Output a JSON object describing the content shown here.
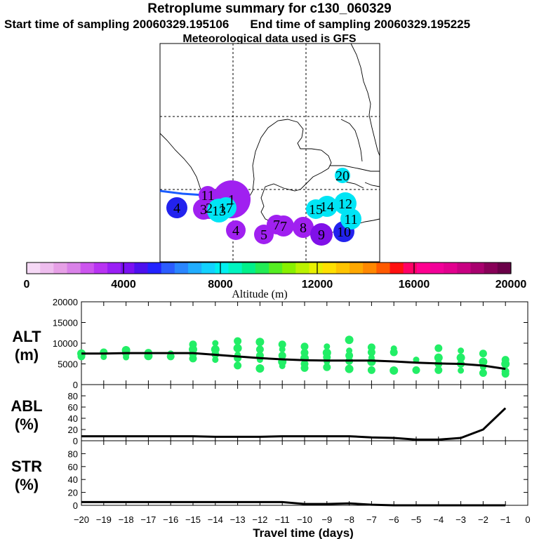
{
  "header": {
    "title": "Retroplume summary for c130_060329",
    "start": "Start time of sampling 20060329.195106",
    "end": "End time of sampling 20060329.195225",
    "met": "Meteorological data used is GFS"
  },
  "colorbar": {
    "tick_labels": [
      "0",
      "4000",
      "8000",
      "12000",
      "16000",
      "20000"
    ],
    "tick_values": [
      0,
      4000,
      8000,
      12000,
      16000,
      20000
    ],
    "label": "Altitude (m)",
    "colors": [
      "#f6d9f6",
      "#eebdee",
      "#e6a0e6",
      "#d982e8",
      "#cc55ee",
      "#b833f2",
      "#9a1ff5",
      "#7a10f2",
      "#4c10ee",
      "#2222ff",
      "#2b5cff",
      "#2a86ff",
      "#21adff",
      "#13d2ff",
      "#00f0f0",
      "#00f5c0",
      "#00f08a",
      "#22ec55",
      "#55ee22",
      "#88f000",
      "#bbf200",
      "#e8f000",
      "#ffe000",
      "#ffc400",
      "#ffa800",
      "#ff8800",
      "#ff5a00",
      "#ff1010",
      "#ff0066",
      "#ff0090",
      "#f20099",
      "#e2008e",
      "#c80082",
      "#a8006e",
      "#880058",
      "#6a0048"
    ]
  },
  "map": {
    "points": [
      {
        "label": "1",
        "color": "#a020f0"
      },
      {
        "label": "2",
        "color": "#a020f0"
      },
      {
        "label": "3",
        "color": "#a020f0"
      },
      {
        "label": "4",
        "color": "#2222ee"
      },
      {
        "label": "4",
        "color": "#a020f0"
      },
      {
        "label": "5",
        "color": "#a020f0"
      },
      {
        "label": "7",
        "color": "#a020f0"
      },
      {
        "label": "7",
        "color": "#a020f0"
      },
      {
        "label": "8",
        "color": "#a020f0"
      },
      {
        "label": "9",
        "color": "#8010e8"
      },
      {
        "label": "10",
        "color": "#2222ee"
      },
      {
        "label": "11",
        "color": "#00e5f5"
      },
      {
        "label": "11",
        "color": "#a020f0"
      },
      {
        "label": "12",
        "color": "#00e5f5"
      },
      {
        "label": "13",
        "color": "#00e5f5"
      },
      {
        "label": "14",
        "color": "#00e5f5"
      },
      {
        "label": "15",
        "color": "#00e5f5"
      },
      {
        "label": "17",
        "color": "#00e5f5"
      },
      {
        "label": "20",
        "color": "#00e5f5"
      }
    ]
  },
  "chart_data": [
    {
      "type": "line",
      "name": "ALT",
      "ylabel": "ALT (m)",
      "ylabel_lines": [
        "ALT",
        "(m)"
      ],
      "ylim": [
        0,
        20000
      ],
      "yticks": [
        0,
        5000,
        10000,
        15000,
        20000
      ],
      "ytick_labels": [
        "0",
        "5000",
        "10000",
        "15000",
        "20000"
      ],
      "x": [
        -20,
        -19,
        -18,
        -17,
        -16,
        -15,
        -14,
        -13,
        -12,
        -11,
        -10,
        -9,
        -8,
        -7,
        -6,
        -5,
        -4,
        -3,
        -2,
        -1
      ],
      "mean": [
        7500,
        7500,
        7600,
        7600,
        7600,
        7600,
        7200,
        6800,
        6400,
        6100,
        5900,
        5800,
        5800,
        5800,
        5600,
        5300,
        5100,
        5000,
        4600,
        3800
      ],
      "scatter_color": "#22ee66",
      "scatter": [
        [
          -20,
          7500
        ],
        [
          -20,
          6800
        ],
        [
          -19,
          7800
        ],
        [
          -19,
          6700
        ],
        [
          -18,
          8300
        ],
        [
          -18,
          7600
        ],
        [
          -18,
          6600
        ],
        [
          -17,
          7700
        ],
        [
          -17,
          6900
        ],
        [
          -16,
          7500
        ],
        [
          -16,
          6800
        ],
        [
          -15,
          9700
        ],
        [
          -15,
          8500
        ],
        [
          -15,
          7400
        ],
        [
          -15,
          6300
        ],
        [
          -14,
          10000
        ],
        [
          -14,
          8500
        ],
        [
          -14,
          7300
        ],
        [
          -14,
          6000
        ],
        [
          -13,
          10500
        ],
        [
          -13,
          8800
        ],
        [
          -13,
          7200
        ],
        [
          -13,
          6400
        ],
        [
          -13,
          4600
        ],
        [
          -12,
          10300
        ],
        [
          -12,
          8500
        ],
        [
          -12,
          7000
        ],
        [
          -12,
          6000
        ],
        [
          -12,
          3900
        ],
        [
          -11,
          9700
        ],
        [
          -11,
          8500
        ],
        [
          -11,
          7000
        ],
        [
          -11,
          5500
        ],
        [
          -11,
          4500
        ],
        [
          -10,
          9200
        ],
        [
          -10,
          7700
        ],
        [
          -10,
          6400
        ],
        [
          -10,
          5000
        ],
        [
          -10,
          4000
        ],
        [
          -9,
          9200
        ],
        [
          -9,
          7700
        ],
        [
          -9,
          6600
        ],
        [
          -9,
          5500
        ],
        [
          -9,
          4200
        ],
        [
          -8,
          10800
        ],
        [
          -8,
          8200
        ],
        [
          -8,
          7000
        ],
        [
          -8,
          5700
        ],
        [
          -8,
          3800
        ],
        [
          -7,
          9000
        ],
        [
          -7,
          7800
        ],
        [
          -7,
          6500
        ],
        [
          -7,
          5500
        ],
        [
          -7,
          3500
        ],
        [
          -6,
          8700
        ],
        [
          -6,
          7800
        ],
        [
          -6,
          3400
        ],
        [
          -5,
          6000
        ],
        [
          -5,
          3500
        ],
        [
          -4,
          8800
        ],
        [
          -4,
          6500
        ],
        [
          -4,
          5000
        ],
        [
          -4,
          3500
        ],
        [
          -3,
          8200
        ],
        [
          -3,
          6500
        ],
        [
          -3,
          5000
        ],
        [
          -3,
          3400
        ],
        [
          -2,
          7500
        ],
        [
          -2,
          5500
        ],
        [
          -2,
          4200
        ],
        [
          -2,
          2800
        ],
        [
          -1,
          6000
        ],
        [
          -1,
          5000
        ],
        [
          -1,
          3200
        ],
        [
          -1,
          2600
        ]
      ]
    },
    {
      "type": "line",
      "name": "ABL",
      "ylabel": "ABL (%)",
      "ylabel_lines": [
        "ABL",
        "(%)"
      ],
      "ylim": [
        0,
        100
      ],
      "yticks": [
        0,
        20,
        40,
        60,
        80
      ],
      "ytick_labels": [
        "0",
        "20",
        "40",
        "60",
        "80"
      ],
      "x": [
        -20,
        -19,
        -18,
        -17,
        -16,
        -15,
        -14,
        -13,
        -12,
        -11,
        -10,
        -9,
        -8,
        -7,
        -6,
        -5,
        -4,
        -3,
        -2,
        -1
      ],
      "y": [
        8,
        8,
        8,
        8,
        8,
        8,
        7,
        7,
        7,
        8,
        8,
        8,
        8,
        6,
        5,
        2,
        2,
        5,
        20,
        58
      ]
    },
    {
      "type": "line",
      "name": "STR",
      "ylabel": "STR (%)",
      "ylabel_lines": [
        "STR",
        "(%)"
      ],
      "ylim": [
        0,
        100
      ],
      "yticks": [
        0,
        20,
        40,
        60,
        80
      ],
      "ytick_labels": [
        "0",
        "20",
        "40",
        "60",
        "80"
      ],
      "xlabel": "Travel time (days)",
      "xlim": [
        -20,
        0
      ],
      "xticks": [
        -20,
        -19,
        -18,
        -17,
        -16,
        -15,
        -14,
        -13,
        -12,
        -11,
        -10,
        -9,
        -8,
        -7,
        -6,
        -5,
        -4,
        -3,
        -2,
        -1,
        0
      ],
      "xtick_labels": [
        "−20",
        "−19",
        "−18",
        "−17",
        "−16",
        "−15",
        "−14",
        "−13",
        "−12",
        "−11",
        "−10",
        "−9",
        "−8",
        "−7",
        "−6",
        "−5",
        "−4",
        "−3",
        "−2",
        "−1",
        "0"
      ],
      "x": [
        -20,
        -19,
        -18,
        -17,
        -16,
        -15,
        -14,
        -13,
        -12,
        -11,
        -10,
        -9,
        -8,
        -7,
        -6,
        -5,
        -4,
        -3,
        -2,
        -1
      ],
      "y": [
        5,
        5,
        5,
        5,
        5,
        5,
        5,
        5,
        5,
        5,
        2,
        2,
        3,
        1,
        0,
        0,
        0,
        0,
        0,
        0
      ]
    }
  ]
}
